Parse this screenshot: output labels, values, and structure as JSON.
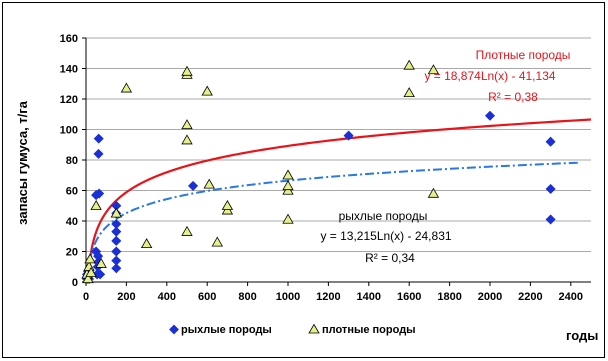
{
  "chart_data": {
    "type": "scatter",
    "ylabel": "запасы гумуса, т/га",
    "xlabel": "годы",
    "xlim": [
      0,
      2500
    ],
    "ylim": [
      0,
      160
    ],
    "x_ticks": [
      0,
      200,
      400,
      600,
      800,
      1000,
      1200,
      1400,
      1600,
      1800,
      2000,
      2200,
      2400
    ],
    "y_ticks": [
      0,
      20,
      40,
      60,
      80,
      100,
      120,
      140,
      160
    ],
    "x_tick_labels": [
      "0",
      "200",
      "400",
      "600",
      "800",
      "1000",
      "1200",
      "1400",
      "1600",
      "1800",
      "2000",
      "2200",
      "2400"
    ],
    "y_tick_labels": [
      "0",
      "20",
      "40",
      "60",
      "80",
      "100",
      "120",
      "140",
      "160"
    ],
    "legend_position": "bottom",
    "series": [
      {
        "name": "рыхлые породы",
        "marker": "diamond",
        "color": "#1a2fd6",
        "points": [
          [
            5,
            2
          ],
          [
            5,
            5
          ],
          [
            8,
            3
          ],
          [
            10,
            7
          ],
          [
            15,
            2
          ],
          [
            20,
            6
          ],
          [
            50,
            20
          ],
          [
            50,
            57
          ],
          [
            55,
            5
          ],
          [
            58,
            10
          ],
          [
            60,
            13
          ],
          [
            60,
            17
          ],
          [
            62,
            84
          ],
          [
            63,
            94
          ],
          [
            65,
            58
          ],
          [
            70,
            5
          ],
          [
            150,
            9
          ],
          [
            150,
            14
          ],
          [
            150,
            20
          ],
          [
            150,
            27
          ],
          [
            150,
            33
          ],
          [
            150,
            38
          ],
          [
            150,
            45
          ],
          [
            150,
            50
          ],
          [
            530,
            63
          ],
          [
            1300,
            96
          ],
          [
            2000,
            109
          ],
          [
            2300,
            41
          ],
          [
            2300,
            61
          ],
          [
            2300,
            92
          ]
        ]
      },
      {
        "name": "плотные  породы",
        "marker": "triangle",
        "color": "#e6f08a",
        "points": [
          [
            5,
            5
          ],
          [
            10,
            2
          ],
          [
            15,
            10
          ],
          [
            20,
            15
          ],
          [
            25,
            6
          ],
          [
            50,
            50
          ],
          [
            75,
            12
          ],
          [
            150,
            45
          ],
          [
            200,
            127
          ],
          [
            300,
            25
          ],
          [
            500,
            33
          ],
          [
            500,
            93
          ],
          [
            500,
            103
          ],
          [
            500,
            136
          ],
          [
            500,
            138
          ],
          [
            600,
            125
          ],
          [
            610,
            64
          ],
          [
            650,
            26
          ],
          [
            700,
            47
          ],
          [
            700,
            50
          ],
          [
            1000,
            41
          ],
          [
            1000,
            60
          ],
          [
            1000,
            63
          ],
          [
            1000,
            70
          ],
          [
            1600,
            124
          ],
          [
            1600,
            142
          ],
          [
            1720,
            139
          ],
          [
            1720,
            58
          ]
        ]
      }
    ],
    "trendlines": [
      {
        "series": "плотные  породы",
        "type": "logarithmic",
        "a": 18.874,
        "b": -41.134,
        "x_from": 20,
        "x_to": 2500,
        "color": "#e8141b",
        "style": "solid",
        "label_lines": [
          "Плотные породы",
          "y = 18,874Ln(x) - 41,134",
          "R² = 0,38"
        ]
      },
      {
        "series": "рыхлые породы",
        "type": "logarithmic",
        "a": 13.215,
        "b": -24.831,
        "x_from": 8,
        "x_to": 2450,
        "color": "#2a78e0",
        "style": "dashdot",
        "label_lines": [
          "рыхлые породы",
          "y = 13,215Ln(x) - 24,831",
          "R² = 0,34"
        ]
      }
    ]
  }
}
